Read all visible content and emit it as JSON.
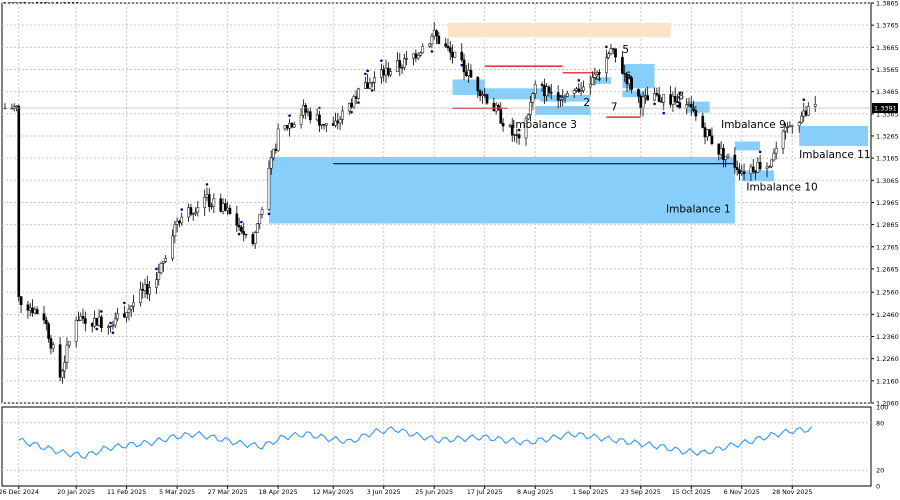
{
  "header": {
    "ohlc_readout": "1.3395 1.3354 1.3391"
  },
  "price_axis": {
    "ticks": [
      "1.3865",
      "1.3765",
      "1.3665",
      "1.3565",
      "1.3465",
      "1.3365",
      "1.3265",
      "1.3165",
      "1.3065",
      "1.2965",
      "1.2865",
      "1.2765",
      "1.2665",
      "1.2560",
      "1.2460",
      "1.2360",
      "1.2260",
      "1.2160",
      "1.2060"
    ],
    "current_price_label": "1.3391"
  },
  "indicator_axis": {
    "ticks": [
      "100",
      "80",
      "20",
      "0"
    ]
  },
  "time_axis": {
    "ticks": [
      "26 Dec 2024",
      "20 Jan 2025",
      "11 Feb 2025",
      "5 Mar 2025",
      "27 Mar 2025",
      "18 Apr 2025",
      "12 May 2025",
      "3 Jun 2025",
      "25 Jun 2025",
      "17 Jul 2025",
      "8 Aug 2025",
      "1 Sep 2025",
      "23 Sep 2025",
      "15 Oct 2025",
      "6 Nov 2025",
      "28 Nov 2025"
    ]
  },
  "annotations": {
    "imbalance_1": "Imbalance 1",
    "imbalance_3": "Imbalance 3",
    "imbalance_9": "Imbalance 9",
    "imbalance_10": "Imbalance 10",
    "imbalance_11": "Imbalance 11",
    "n2": "2",
    "n4": "4",
    "n5": "5",
    "n6": "6",
    "n7": "7",
    "n8": "8"
  },
  "colors": {
    "zone_blue": "#87cefa",
    "zone_peach": "#fbe3c8",
    "candle": "#000000",
    "fractal": "#00008b",
    "level_red": "#e00000",
    "level_blue": "#00008b",
    "indicator_line": "#1e90ff",
    "grid": "#c8c8c8"
  },
  "chart_data": {
    "type": "candlestick",
    "symbol_ohlc": [
      "1.3395",
      "1.3354",
      "1.3391"
    ],
    "ylim": [
      1.206,
      1.3865
    ],
    "x_labels": [
      "26 Dec 2024",
      "20 Jan 2025",
      "11 Feb 2025",
      "5 Mar 2025",
      "27 Mar 2025",
      "18 Apr 2025",
      "12 May 2025",
      "3 Jun 2025",
      "25 Jun 2025",
      "17 Jul 2025",
      "8 Aug 2025",
      "1 Sep 2025",
      "23 Sep 2025",
      "15 Oct 2025",
      "6 Nov 2025",
      "28 Nov 2025"
    ],
    "close_path": [
      {
        "x": "26 Dec 2024",
        "y": 1.253
      },
      {
        "x": "6 Jan 2025",
        "y": 1.245
      },
      {
        "x": "13 Jan 2025",
        "y": 1.218
      },
      {
        "x": "20 Jan 2025",
        "y": 1.245
      },
      {
        "x": "3 Feb 2025",
        "y": 1.242
      },
      {
        "x": "11 Feb 2025",
        "y": 1.248
      },
      {
        "x": "24 Feb 2025",
        "y": 1.262
      },
      {
        "x": "5 Mar 2025",
        "y": 1.289
      },
      {
        "x": "17 Mar 2025",
        "y": 1.298
      },
      {
        "x": "27 Mar 2025",
        "y": 1.292
      },
      {
        "x": "7 Apr 2025",
        "y": 1.278
      },
      {
        "x": "18 Apr 2025",
        "y": 1.327
      },
      {
        "x": "29 Apr 2025",
        "y": 1.338
      },
      {
        "x": "12 May 2025",
        "y": 1.33
      },
      {
        "x": "22 May 2025",
        "y": 1.345
      },
      {
        "x": "3 Jun 2025",
        "y": 1.355
      },
      {
        "x": "13 Jun 2025",
        "y": 1.36
      },
      {
        "x": "25 Jun 2025",
        "y": 1.372
      },
      {
        "x": "7 Jul 2025",
        "y": 1.358
      },
      {
        "x": "17 Jul 2025",
        "y": 1.345
      },
      {
        "x": "1 Aug 2025",
        "y": 1.323
      },
      {
        "x": "8 Aug 2025",
        "y": 1.348
      },
      {
        "x": "20 Aug 2025",
        "y": 1.345
      },
      {
        "x": "1 Sep 2025",
        "y": 1.35
      },
      {
        "x": "10 Sep 2025",
        "y": 1.365
      },
      {
        "x": "23 Sep 2025",
        "y": 1.342
      },
      {
        "x": "3 Oct 2025",
        "y": 1.344
      },
      {
        "x": "15 Oct 2025",
        "y": 1.338
      },
      {
        "x": "27 Oct 2025",
        "y": 1.32
      },
      {
        "x": "6 Nov 2025",
        "y": 1.311
      },
      {
        "x": "18 Nov 2025",
        "y": 1.315
      },
      {
        "x": "28 Nov 2025",
        "y": 1.333
      },
      {
        "x": "8 Dec 2025",
        "y": 1.3391
      }
    ],
    "zones": [
      {
        "label": "Imbalance 1",
        "from": "14 Apr 2025",
        "to": "3 Nov 2025",
        "low": 1.287,
        "high": 1.317
      },
      {
        "label": "Imbalance 3",
        "from": "8 Aug 2025",
        "to": "1 Sep 2025",
        "low": 1.336,
        "high": 1.34
      },
      {
        "label": "Imbalance 9",
        "from": "3 Nov 2025",
        "to": "14 Nov 2025",
        "low": 1.32,
        "high": 1.324
      },
      {
        "label": "Imbalance 10",
        "from": "6 Nov 2025",
        "to": "20 Nov 2025",
        "low": 1.306,
        "high": 1.311
      },
      {
        "label": "Imbalance 11",
        "from": "1 Dec 2025",
        "to": "31 Dec 2025",
        "low": 1.322,
        "high": 1.331
      },
      {
        "label": "5",
        "from": "15 Sep 2025",
        "to": "29 Sep 2025",
        "low": 1.348,
        "high": 1.359
      },
      {
        "label": "8",
        "from": "13 Oct 2025",
        "to": "23 Oct 2025",
        "low": 1.337,
        "high": 1.342
      }
    ],
    "levels": [
      {
        "color": "red",
        "price": 1.358,
        "from": "17 Jul 2025",
        "to": "20 Aug 2025"
      },
      {
        "color": "red",
        "price": 1.339,
        "from": "3 Jul 2025",
        "to": "27 Jul 2025"
      },
      {
        "color": "red",
        "price": 1.355,
        "from": "20 Aug 2025",
        "to": "3 Sep 2025"
      },
      {
        "color": "red",
        "price": 1.335,
        "from": "8 Sep 2025",
        "to": "23 Sep 2025"
      },
      {
        "color": "blue",
        "price": 1.314,
        "from": "12 May 2025",
        "to": "3 Nov 2025"
      }
    ],
    "indicator": {
      "axis_ticks": [
        100,
        80,
        20,
        0
      ],
      "values": [
        58,
        50,
        42,
        38,
        48,
        52,
        55,
        62,
        66,
        60,
        54,
        50,
        62,
        66,
        60,
        56,
        68,
        72,
        64,
        58,
        60,
        62,
        58,
        55,
        60,
        66,
        62,
        58,
        54,
        50,
        44,
        42,
        50,
        56,
        64,
        70,
        72
      ]
    },
    "current_price": 1.3391
  }
}
